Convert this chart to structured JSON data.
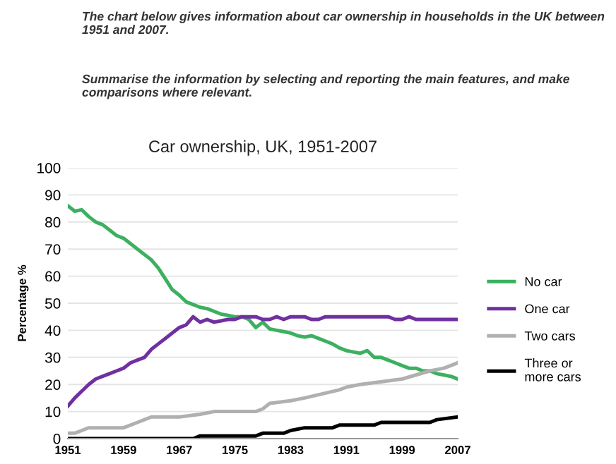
{
  "chart_data": {
    "type": "line",
    "title": "Car ownership, UK, 1951-2007",
    "ylabel": "Percentage %",
    "annotations": [
      "The chart below gives information about car ownership in households in the UK between 1951 and 2007.",
      "Summarise the information by selecting and reporting the main features, and make comparisons where relevant."
    ],
    "xlim": [
      1951,
      2007
    ],
    "xticks": [
      1951,
      1959,
      1967,
      1975,
      1983,
      1991,
      1999,
      2007
    ],
    "ylim": [
      0,
      100
    ],
    "yticks": [
      0,
      10,
      20,
      30,
      40,
      50,
      60,
      70,
      80,
      90,
      100
    ],
    "grid": "y",
    "legend": "right",
    "marker": "none",
    "line_style": "solid",
    "series": [
      {
        "name": "No car",
        "color": "#3cb060",
        "x": [
          1951,
          1952,
          1953,
          1954,
          1955,
          1956,
          1957,
          1958,
          1959,
          1960,
          1961,
          1962,
          1963,
          1964,
          1965,
          1966,
          1967,
          1968,
          1969,
          1970,
          1971,
          1972,
          1973,
          1974,
          1975,
          1976,
          1977,
          1978,
          1979,
          1980,
          1981,
          1982,
          1983,
          1984,
          1985,
          1986,
          1987,
          1988,
          1989,
          1990,
          1991,
          1992,
          1993,
          1994,
          1995,
          1996,
          1997,
          1998,
          1999,
          2000,
          2001,
          2002,
          2003,
          2004,
          2005,
          2006,
          2007
        ],
        "values": [
          86,
          84,
          84.5,
          82,
          80,
          79,
          77,
          75,
          74,
          72,
          70,
          68,
          66,
          63,
          59,
          55,
          53,
          50.5,
          49.5,
          48.5,
          48,
          47,
          46,
          45.5,
          45,
          45,
          44,
          41,
          43,
          40.5,
          40,
          39.5,
          39,
          38,
          37.5,
          38,
          37,
          36,
          35,
          33.5,
          32.5,
          32,
          31.5,
          32.5,
          30,
          30,
          29,
          28,
          27,
          26,
          26,
          25,
          25,
          24,
          23.5,
          23,
          22
        ]
      },
      {
        "name": "One car",
        "color": "#7030a0",
        "x": [
          1951,
          1952,
          1953,
          1954,
          1955,
          1956,
          1957,
          1958,
          1959,
          1960,
          1961,
          1962,
          1963,
          1964,
          1965,
          1966,
          1967,
          1968,
          1969,
          1970,
          1971,
          1972,
          1973,
          1974,
          1975,
          1976,
          1977,
          1978,
          1979,
          1980,
          1981,
          1982,
          1983,
          1985,
          1986,
          1987,
          1988,
          1997,
          1998,
          1999,
          2000,
          2001,
          2007
        ],
        "values": [
          12,
          15,
          17.5,
          20,
          22,
          23,
          24,
          25,
          26,
          28,
          29,
          30,
          33,
          35,
          37,
          39,
          41,
          42,
          45,
          43,
          44,
          43,
          43.5,
          44,
          44,
          45,
          45,
          45,
          44,
          44,
          45,
          44,
          45,
          45,
          44,
          44,
          45,
          45,
          44,
          44,
          45,
          44,
          44
        ]
      },
      {
        "name": "Two cars",
        "color": "#b0b0b0",
        "x": [
          1951,
          1952,
          1953,
          1954,
          1959,
          1960,
          1961,
          1962,
          1963,
          1967,
          1970,
          1972,
          1978,
          1979,
          1980,
          1983,
          1985,
          1990,
          1991,
          1993,
          1999,
          2003,
          2005,
          2006,
          2007
        ],
        "values": [
          2,
          2,
          3,
          4,
          4,
          5,
          6,
          7,
          8,
          8,
          9,
          10,
          10,
          11,
          13,
          14,
          15,
          18,
          19,
          20,
          22,
          25,
          26,
          27,
          28
        ]
      },
      {
        "name": "Three or\nmore cars",
        "color": "#000000",
        "x": [
          1951,
          1969,
          1970,
          1978,
          1979,
          1982,
          1983,
          1985,
          1989,
          1990,
          1995,
          1996,
          2003,
          2004,
          2007
        ],
        "values": [
          0,
          0,
          1,
          1,
          2,
          2,
          3,
          4,
          4,
          5,
          5,
          6,
          6,
          7,
          8
        ]
      }
    ]
  }
}
